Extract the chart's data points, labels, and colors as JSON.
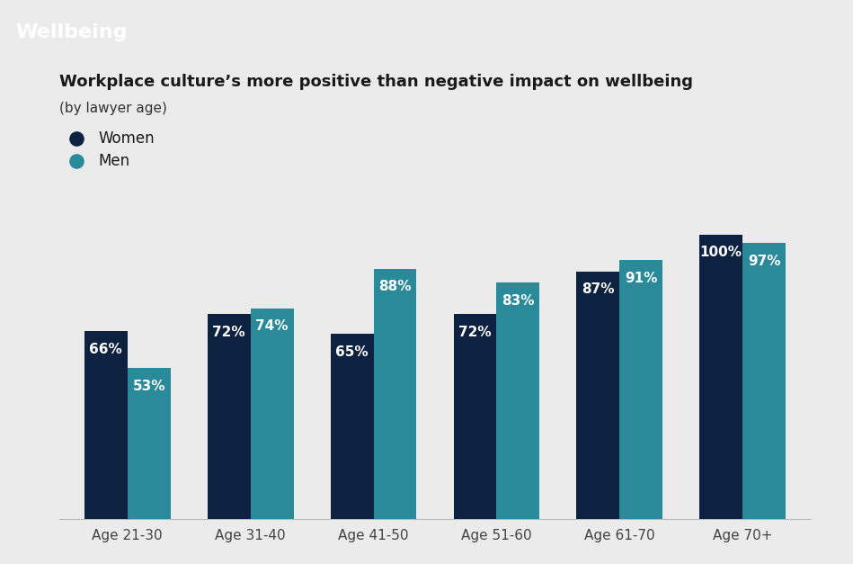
{
  "title_main": "Workplace culture’s more positive than negative impact on wellbeing",
  "title_sub": "(by lawyer age)",
  "header_text": "Wellbeing",
  "header_bg_color": "#8c9e0a",
  "background_color": "#ebebeb",
  "white_panel_color": "#ffffff",
  "categories": [
    "Age 21-30",
    "Age 31-40",
    "Age 41-50",
    "Age 51-60",
    "Age 61-70",
    "Age 70+"
  ],
  "women_values": [
    66,
    72,
    65,
    72,
    87,
    100
  ],
  "men_values": [
    53,
    74,
    88,
    83,
    91,
    97
  ],
  "women_color": "#0d2240",
  "men_color": "#2a8a9a",
  "legend_labels": [
    "Women",
    "Men"
  ],
  "bar_width": 0.35,
  "ylim": [
    0,
    115
  ],
  "label_fontsize": 11,
  "axis_label_fontsize": 11,
  "title_fontsize": 13,
  "subtitle_fontsize": 11,
  "legend_fontsize": 12,
  "header_fontsize": 16
}
